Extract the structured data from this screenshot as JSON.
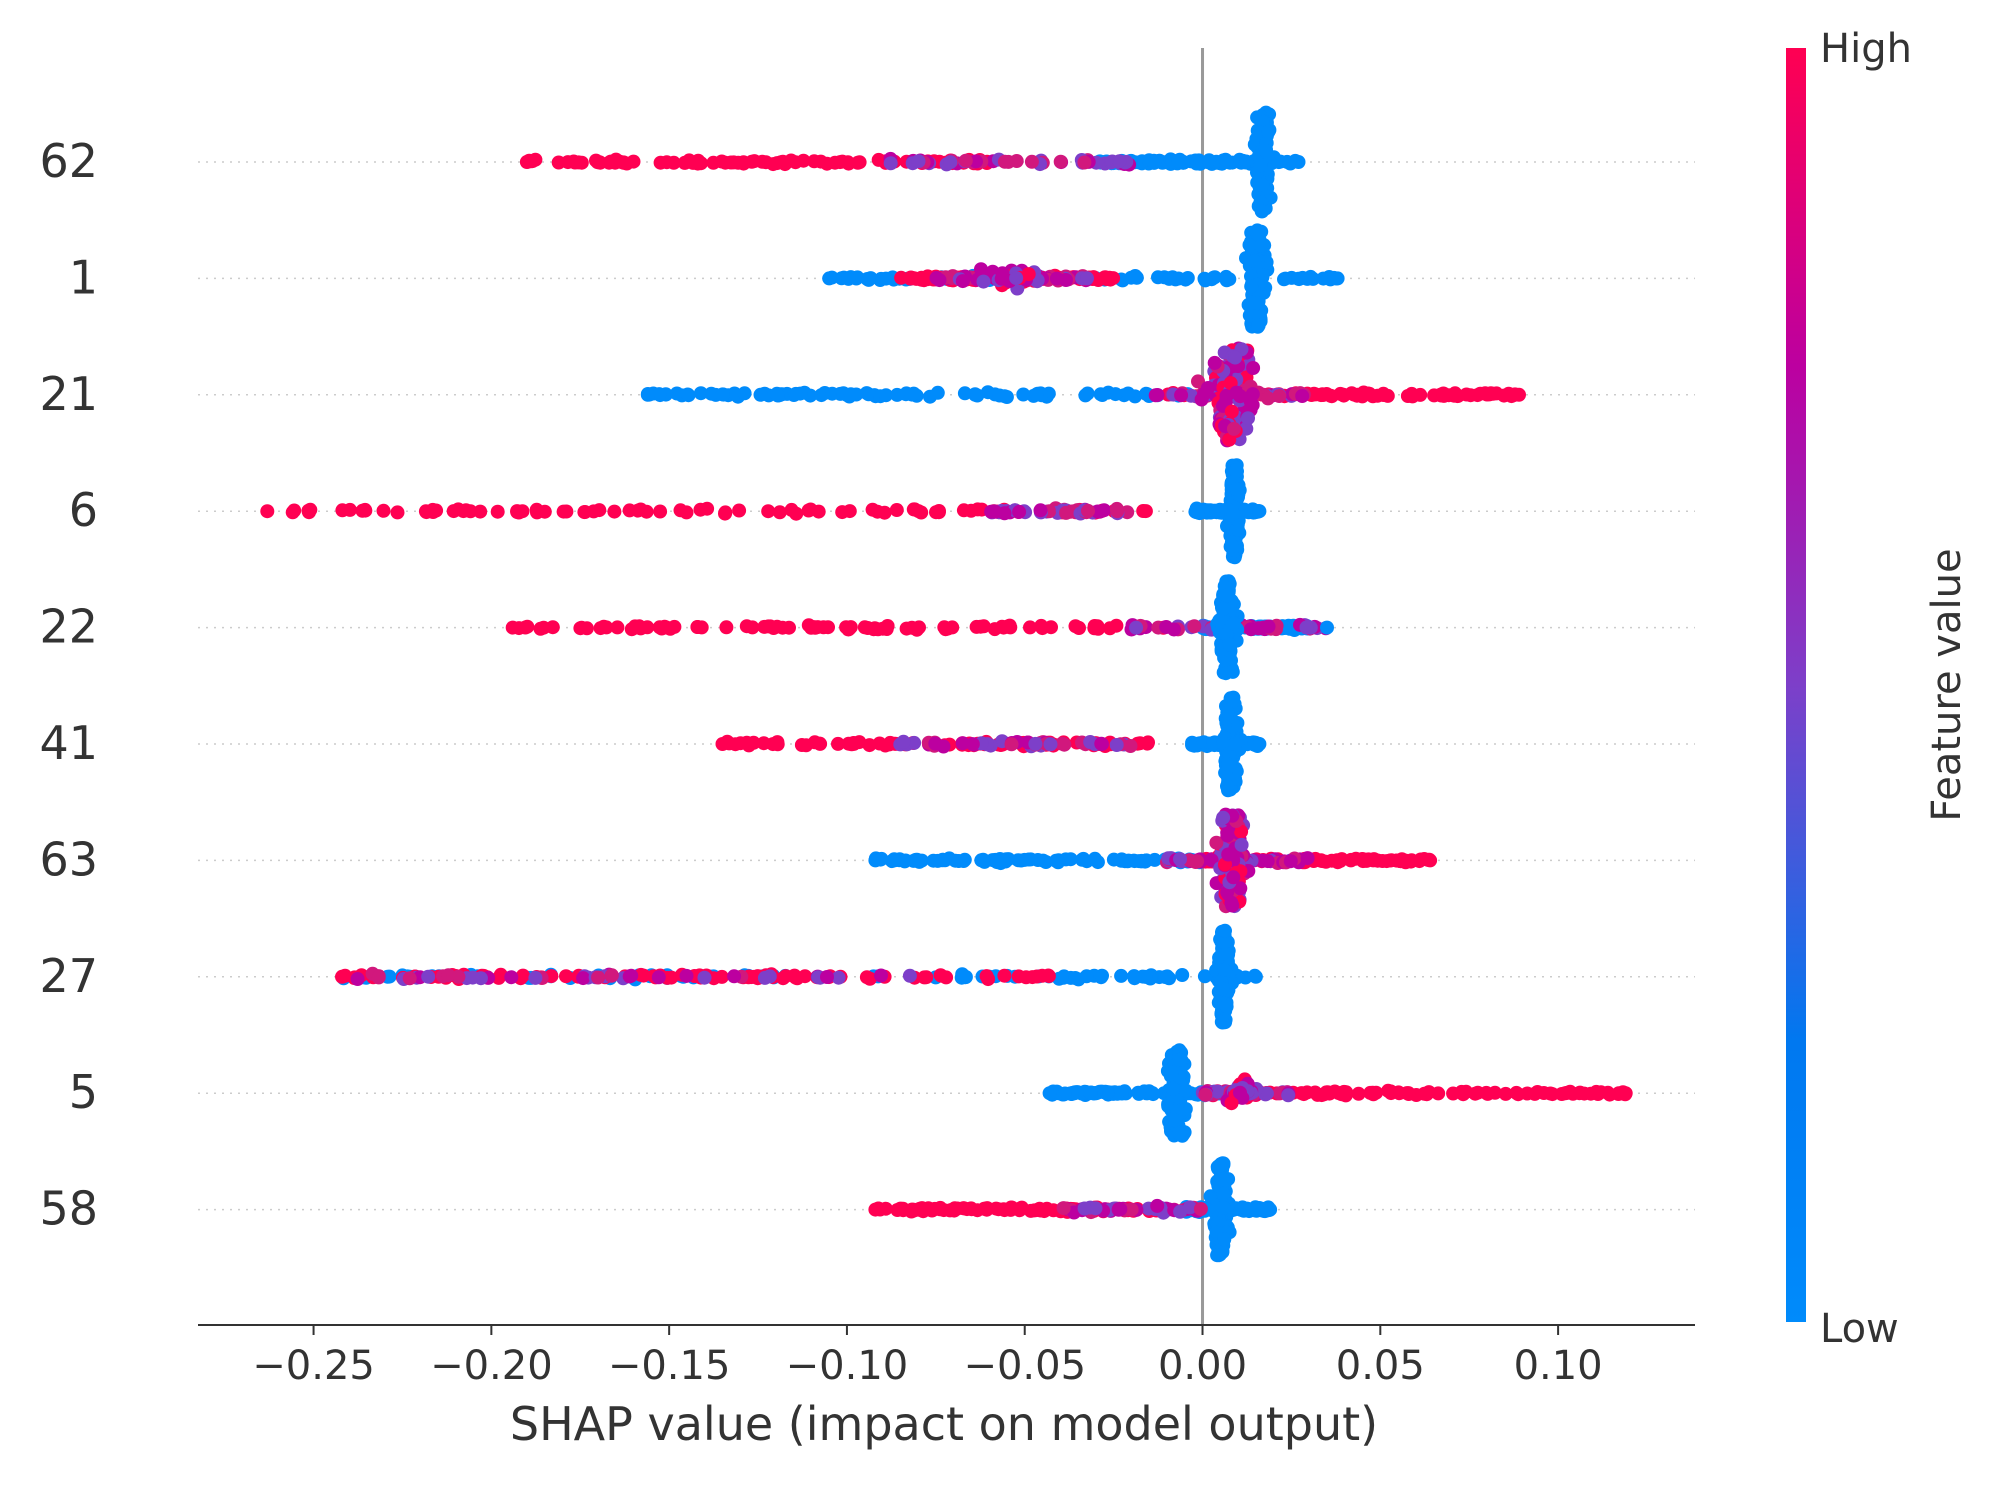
{
  "chart_data": {
    "type": "scatter",
    "subtype": "shap-beeswarm-summary",
    "title": "",
    "xlabel": "SHAP value (impact on model output)",
    "xlim": [
      -0.2825,
      0.1385
    ],
    "x_ticks": [
      -0.25,
      -0.2,
      -0.15,
      -0.1,
      -0.05,
      0.0,
      0.05,
      0.1
    ],
    "x_tick_labels": [
      "−0.25",
      "−0.20",
      "−0.15",
      "−0.10",
      "−0.05",
      "0.00",
      "0.05",
      "0.10"
    ],
    "zero_line": 0.0,
    "grid": "dotted horizontal row guides",
    "colorbar": {
      "label": "Feature value",
      "high_label": "High",
      "low_label": "Low",
      "low_color": "#008bfb",
      "mid_color": "#bc00a0",
      "high_color": "#ff0052",
      "placement": "right"
    },
    "features": [
      {
        "name": "62",
        "min": -0.19,
        "max": 0.027,
        "hi_min": -0.19,
        "hi_max": -0.06,
        "mix_min": -0.09,
        "mix_max": -0.02,
        "lo_min": -0.03,
        "lo_max": 0.027,
        "bulge": 0.017,
        "bulge_w": 0.004,
        "bulge_h": 0.85,
        "bulge_color": "lo"
      },
      {
        "name": "1",
        "min": -0.105,
        "max": 0.038,
        "hi_min": -0.085,
        "hi_max": -0.025,
        "mix_min": -0.075,
        "mix_max": -0.03,
        "lo_min": -0.105,
        "lo_max": 0.038,
        "bulge": 0.015,
        "bulge_w": 0.005,
        "bulge_h": 0.85,
        "bulge_color": "lo",
        "secondary": -0.053,
        "secondary_w": 0.012,
        "secondary_h": 0.22
      },
      {
        "name": "21",
        "min": -0.156,
        "max": 0.089,
        "hi_min": -0.01,
        "hi_max": 0.089,
        "mix_min": -0.015,
        "mix_max": 0.03,
        "lo_min": -0.156,
        "lo_max": 0.0,
        "bulge": 0.008,
        "bulge_w": 0.012,
        "bulge_h": 0.8,
        "bulge_color": "mix"
      },
      {
        "name": "6",
        "min": -0.263,
        "max": 0.016,
        "hi_min": -0.263,
        "hi_max": -0.01,
        "mix_min": -0.06,
        "mix_max": -0.02,
        "lo_min": -0.002,
        "lo_max": 0.016,
        "bulge": 0.009,
        "bulge_w": 0.003,
        "bulge_h": 0.8,
        "bulge_color": "lo"
      },
      {
        "name": "22",
        "min": -0.194,
        "max": 0.035,
        "hi_min": -0.194,
        "hi_max": -0.01,
        "mix_min": -0.02,
        "mix_max": 0.035,
        "lo_min": 0.0,
        "lo_max": 0.03,
        "bulge": 0.007,
        "bulge_w": 0.004,
        "bulge_h": 0.8,
        "bulge_color": "lo"
      },
      {
        "name": "41",
        "min": -0.135,
        "max": 0.016,
        "hi_min": -0.135,
        "hi_max": -0.01,
        "mix_min": -0.085,
        "mix_max": -0.02,
        "lo_min": -0.003,
        "lo_max": 0.016,
        "bulge": 0.008,
        "bulge_w": 0.004,
        "bulge_h": 0.8,
        "bulge_color": "lo"
      },
      {
        "name": "63",
        "min": -0.092,
        "max": 0.064,
        "hi_min": 0.0,
        "hi_max": 0.064,
        "mix_min": -0.01,
        "mix_max": 0.03,
        "lo_min": -0.092,
        "lo_max": 0.0,
        "bulge": 0.008,
        "bulge_w": 0.008,
        "bulge_h": 0.8,
        "bulge_color": "mix"
      },
      {
        "name": "27",
        "min": -0.242,
        "max": 0.015,
        "hi_min": -0.242,
        "hi_max": -0.04,
        "mix_min": -0.242,
        "mix_max": -0.08,
        "lo_min": -0.242,
        "lo_max": 0.015,
        "bulge": 0.006,
        "bulge_w": 0.003,
        "bulge_h": 0.8,
        "bulge_color": "lo"
      },
      {
        "name": "5",
        "min": -0.043,
        "max": 0.119,
        "hi_min": 0.0,
        "hi_max": 0.119,
        "mix_min": 0.0,
        "mix_max": 0.025,
        "lo_min": -0.043,
        "lo_max": 0.005,
        "bulge": -0.007,
        "bulge_w": 0.005,
        "bulge_h": 0.75,
        "bulge_color": "lo",
        "secondary": 0.011,
        "secondary_w": 0.006,
        "secondary_h": 0.28
      },
      {
        "name": "58",
        "min": -0.092,
        "max": 0.019,
        "hi_min": -0.092,
        "hi_max": -0.01,
        "mix_min": -0.04,
        "mix_max": 0.0,
        "lo_min": -0.005,
        "lo_max": 0.019,
        "bulge": 0.005,
        "bulge_w": 0.004,
        "bulge_h": 0.8,
        "bulge_color": "lo"
      }
    ]
  }
}
